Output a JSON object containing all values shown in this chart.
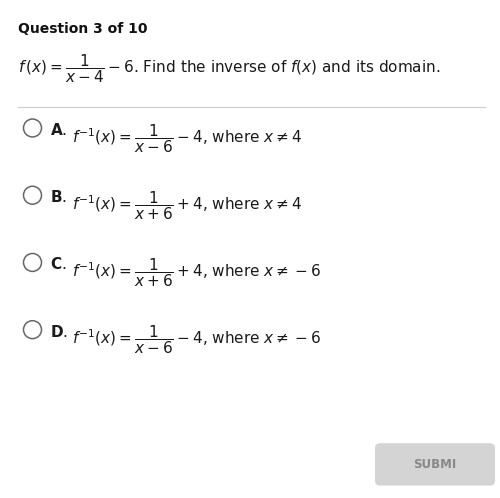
{
  "background_color": "#ffffff",
  "question_label": "Question 3 of 10",
  "question_text_math": "$f\\,(x) = \\dfrac{1}{x-4} - 6$. Find the inverse of $f(x)$ and its domain.",
  "options": [
    {
      "letter": "A",
      "formula_math": "$f^{-1}(x) = \\dfrac{1}{x-6} - 4$, where $x\\neq 4$"
    },
    {
      "letter": "B",
      "formula_math": "$f^{-1}(x) = \\dfrac{1}{x+6} + 4$, where $x\\neq 4$"
    },
    {
      "letter": "C",
      "formula_math": "$f^{-1}(x) = \\dfrac{1}{x+6} + 4$, where $x\\neq -6$"
    },
    {
      "letter": "D",
      "formula_math": "$f^{-1}(x) = \\dfrac{1}{x-6} - 4$, where $x\\neq -6$"
    }
  ],
  "submit_button_color": "#d4d4d4",
  "submit_text": "SUBMI",
  "circle_color": "#666666",
  "text_color": "#1a1a1a",
  "question_label_color": "#111111",
  "divider_color": "#cccccc",
  "figsize": [
    5.0,
    4.98
  ],
  "dpi": 100,
  "question_label_fontsize": 10,
  "question_text_fontsize": 11,
  "option_fontsize": 11
}
